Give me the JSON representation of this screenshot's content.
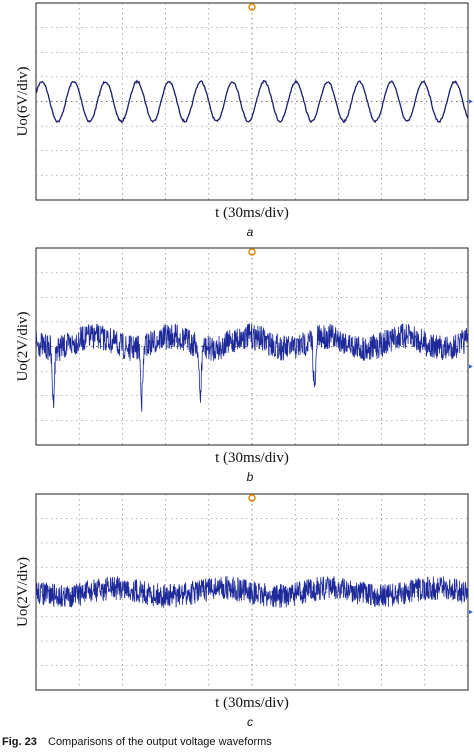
{
  "panels": [
    {
      "y_label": "Uo(6V/div)",
      "x_label": "t (30ms/div)",
      "letter": "a"
    },
    {
      "y_label": "Uo(2V/div)",
      "x_label": "t (30ms/div)",
      "letter": "b"
    },
    {
      "y_label": "Uo(2V/div)",
      "x_label": "t (30ms/div)",
      "letter": "c"
    }
  ],
  "caption": {
    "label": "Fig. 23",
    "text": "Comparisons of the output voltage waveforms"
  }
}
